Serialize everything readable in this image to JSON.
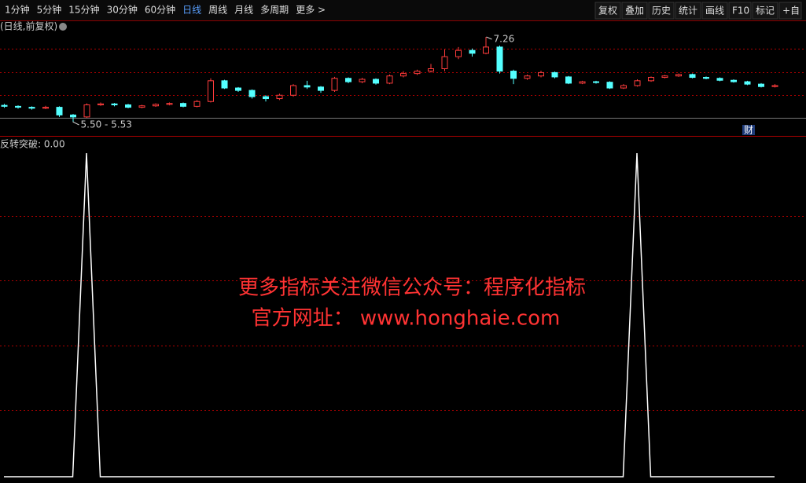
{
  "toolbar": {
    "periods": [
      "1分钟",
      "5分钟",
      "15分钟",
      "30分钟",
      "60分钟",
      "日线",
      "周线",
      "月线",
      "多周期",
      "更多 >"
    ],
    "tools": [
      "复权",
      "叠加",
      "历史",
      "统计",
      "画线",
      "F10",
      "标记",
      "+自"
    ]
  },
  "main_chart": {
    "title": "(日线,前复权)",
    "type": "candlestick",
    "open": [
      5.84,
      5.82,
      5.8,
      5.78,
      5.8,
      5.64,
      5.6,
      5.85,
      5.87,
      5.85,
      5.8,
      5.83,
      5.86,
      5.88,
      5.82,
      5.92,
      6.35,
      6.2,
      6.15,
      6.02,
      5.98,
      6.05,
      6.25,
      6.22,
      6.15,
      6.4,
      6.33,
      6.38,
      6.3,
      6.45,
      6.5,
      6.55,
      6.6,
      6.85,
      6.98,
      6.92,
      7.05,
      6.55,
      6.4,
      6.45,
      6.52,
      6.43,
      6.3,
      6.33,
      6.32,
      6.2,
      6.25,
      6.35,
      6.42,
      6.45,
      6.48,
      6.42,
      6.4,
      6.36,
      6.33,
      6.28,
      6.23
    ],
    "close": [
      5.82,
      5.8,
      5.78,
      5.8,
      5.64,
      5.6,
      5.85,
      5.87,
      5.85,
      5.8,
      5.83,
      5.86,
      5.88,
      5.82,
      5.92,
      6.35,
      6.2,
      6.15,
      6.02,
      5.98,
      6.05,
      6.25,
      6.22,
      6.15,
      6.4,
      6.33,
      6.38,
      6.3,
      6.45,
      6.5,
      6.55,
      6.6,
      6.85,
      6.98,
      6.92,
      7.05,
      6.55,
      6.4,
      6.45,
      6.52,
      6.43,
      6.3,
      6.33,
      6.32,
      6.2,
      6.25,
      6.35,
      6.42,
      6.45,
      6.48,
      6.42,
      6.4,
      6.36,
      6.33,
      6.28,
      6.23,
      6.25
    ],
    "high": [
      5.87,
      5.84,
      5.82,
      5.83,
      5.82,
      5.66,
      5.88,
      5.9,
      5.89,
      5.87,
      5.85,
      5.88,
      5.9,
      5.9,
      5.95,
      6.4,
      6.37,
      6.22,
      6.17,
      6.05,
      6.08,
      6.28,
      6.35,
      6.24,
      6.43,
      6.42,
      6.41,
      6.4,
      6.48,
      6.55,
      6.58,
      6.7,
      7.0,
      7.05,
      7.02,
      7.26,
      7.08,
      6.58,
      6.48,
      6.56,
      6.54,
      6.45,
      6.35,
      6.35,
      6.34,
      6.28,
      6.38,
      6.44,
      6.47,
      6.5,
      6.5,
      6.44,
      6.42,
      6.38,
      6.35,
      6.3,
      6.28
    ],
    "low": [
      5.79,
      5.77,
      5.75,
      5.76,
      5.6,
      5.5,
      5.58,
      5.83,
      5.82,
      5.78,
      5.78,
      5.81,
      5.84,
      5.8,
      5.8,
      5.9,
      6.18,
      6.12,
      5.98,
      5.92,
      5.95,
      6.02,
      6.18,
      6.1,
      6.12,
      6.3,
      6.3,
      6.27,
      6.28,
      6.42,
      6.47,
      6.52,
      6.55,
      6.8,
      6.85,
      6.9,
      6.5,
      6.28,
      6.37,
      6.42,
      6.4,
      6.28,
      6.28,
      6.29,
      6.18,
      6.18,
      6.23,
      6.33,
      6.4,
      6.43,
      6.4,
      6.38,
      6.34,
      6.31,
      6.26,
      6.21,
      6.21
    ],
    "high_label": "7.26",
    "low_label": "5.50 - 5.53",
    "badge": "财"
  },
  "indicator": {
    "label": "反转突破: 0.00",
    "values": [
      0,
      0,
      0,
      0,
      0,
      0,
      1,
      0,
      0,
      0,
      0,
      0,
      0,
      0,
      0,
      0,
      0,
      0,
      0,
      0,
      0,
      0,
      0,
      0,
      0,
      0,
      0,
      0,
      0,
      0,
      0,
      0,
      0,
      0,
      0,
      0,
      0,
      0,
      0,
      0,
      0,
      0,
      0,
      0,
      0,
      0,
      1,
      0,
      0,
      0,
      0,
      0,
      0,
      0,
      0,
      0,
      0
    ]
  },
  "watermark": {
    "line1": "更多指标关注微信公众号：程序化指标",
    "line2": "官方网址： www.honghaie.com"
  }
}
